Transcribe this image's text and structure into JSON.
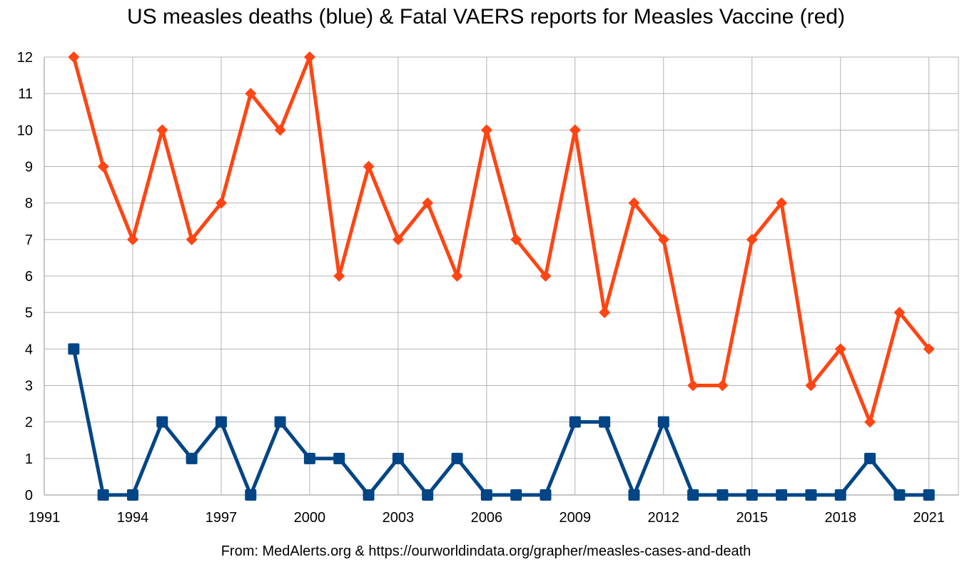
{
  "chart_data": {
    "type": "line",
    "title": "US measles deaths (blue) & Fatal VAERS reports for Measles Vaccine (red)",
    "source": "From: MedAlerts.org & https://ourworldindata.org/grapher/measles-cases-and-death",
    "xlim": [
      1991,
      2022
    ],
    "ylim": [
      0,
      12
    ],
    "x_ticks": [
      1991,
      1994,
      1997,
      2000,
      2003,
      2006,
      2009,
      2012,
      2015,
      2018,
      2021
    ],
    "y_ticks": [
      0,
      1,
      2,
      3,
      4,
      5,
      6,
      7,
      8,
      9,
      10,
      11,
      12
    ],
    "grid": true,
    "x": [
      1992,
      1993,
      1994,
      1995,
      1996,
      1997,
      1998,
      1999,
      2000,
      2001,
      2002,
      2003,
      2004,
      2005,
      2006,
      2007,
      2008,
      2009,
      2010,
      2011,
      2012,
      2013,
      2014,
      2015,
      2016,
      2017,
      2018,
      2019,
      2020,
      2021
    ],
    "series": [
      {
        "color": "#ff4513",
        "marker": "diamond",
        "values": [
          12,
          9,
          7,
          10,
          7,
          8,
          11,
          10,
          12,
          6,
          9,
          7,
          8,
          6,
          10,
          7,
          6,
          10,
          5,
          8,
          7,
          3,
          3,
          7,
          8,
          3,
          4,
          2,
          5,
          4
        ]
      },
      {
        "color": "#004586",
        "marker": "square",
        "values": [
          4,
          0,
          0,
          2,
          1,
          2,
          0,
          2,
          1,
          1,
          0,
          1,
          0,
          1,
          0,
          0,
          0,
          2,
          2,
          0,
          2,
          0,
          0,
          0,
          0,
          0,
          0,
          1,
          0,
          0
        ]
      }
    ]
  }
}
